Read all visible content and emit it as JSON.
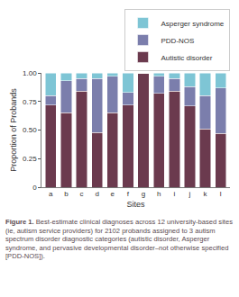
{
  "chart_data": {
    "type": "bar",
    "stacked": true,
    "caption": "Figure 1. Best-estimate clinical diagnoses across 12 university-based sites (ie, autism service providers) for 2102 probands assigned to 3 autism spectrum disorder diagnostic categories (autistic disorder, Asperger syndrome, and pervasive developmental disorder–not otherwise specified [PDD-NOS]).",
    "x_label": "Sites",
    "y_label": "Proportion of Probands",
    "categories": [
      "a",
      "b",
      "c",
      "d",
      "e",
      "f",
      "g",
      "h",
      "i",
      "j",
      "k",
      "l"
    ],
    "series": [
      {
        "name": "Autistic disorder",
        "color": "#6b3a4e",
        "values": [
          0.72,
          0.65,
          0.84,
          0.48,
          0.65,
          0.72,
          1.0,
          0.82,
          0.84,
          0.71,
          0.51,
          0.47
        ]
      },
      {
        "name": "PDD-NOS",
        "color": "#7b7eac",
        "values": [
          0.08,
          0.28,
          0.11,
          0.47,
          0.32,
          0.11,
          0.0,
          0.15,
          0.11,
          0.17,
          0.29,
          0.4
        ]
      },
      {
        "name": "Asperger syndrome",
        "color": "#7ec5d5",
        "values": [
          0.2,
          0.07,
          0.05,
          0.05,
          0.03,
          0.17,
          0.0,
          0.03,
          0.05,
          0.12,
          0.2,
          0.13
        ]
      }
    ],
    "ylim": [
      0,
      1
    ],
    "yticks": [
      0,
      0.25,
      {
        "value": 0.5,
        "label": "0.50"
      },
      0.75,
      {
        "value": 1,
        "label": "1.00"
      }
    ],
    "grid": false,
    "legend": "top right"
  }
}
